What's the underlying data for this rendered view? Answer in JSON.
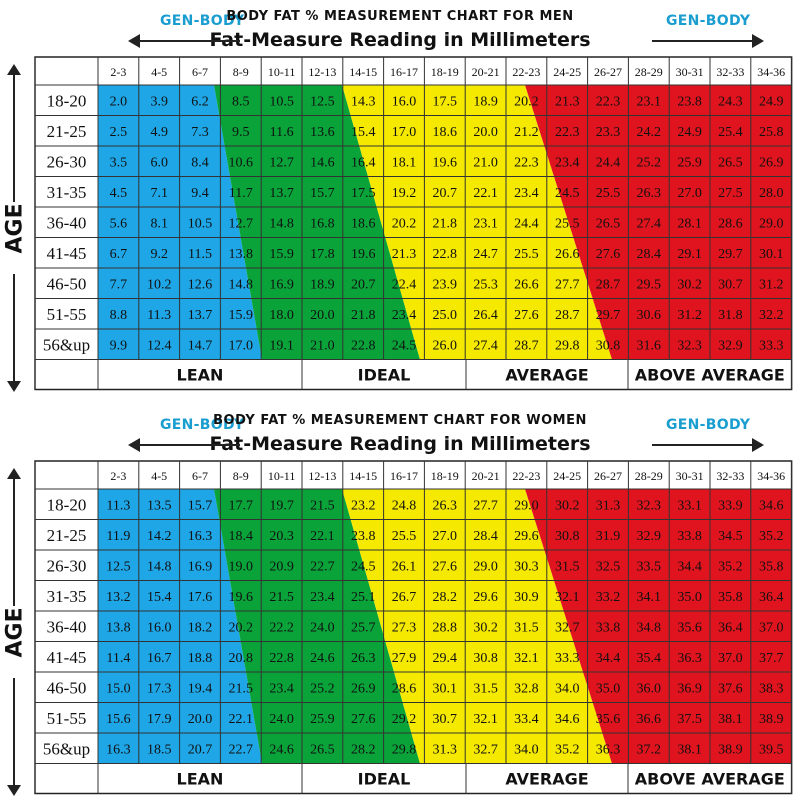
{
  "brand": "GEN-BODY",
  "colors": {
    "lean": "#1fa6e6",
    "ideal": "#0aa33a",
    "average": "#f5e900",
    "above_average": "#e0141e"
  },
  "chart_data": [
    {
      "type": "table",
      "title": "BODY FAT % MEASUREMENT CHART FOR MEN",
      "subtitle": "Fat-Measure Reading in Millimeters",
      "ylabel": "AGE",
      "columns": [
        "2-3",
        "4-5",
        "6-7",
        "8-9",
        "10-11",
        "12-13",
        "14-15",
        "16-17",
        "18-19",
        "20-21",
        "22-23",
        "24-25",
        "26-27",
        "28-29",
        "30-31",
        "32-33",
        "34-36"
      ],
      "rows": [
        "18-20",
        "21-25",
        "26-30",
        "31-35",
        "36-40",
        "41-45",
        "46-50",
        "51-55",
        "56&up"
      ],
      "values": [
        [
          2.0,
          3.9,
          6.2,
          8.5,
          10.5,
          12.5,
          14.3,
          16.0,
          17.5,
          18.9,
          20.2,
          21.3,
          22.3,
          23.1,
          23.8,
          24.3,
          24.9
        ],
        [
          2.5,
          4.9,
          7.3,
          9.5,
          11.6,
          13.6,
          15.4,
          17.0,
          18.6,
          20.0,
          21.2,
          22.3,
          23.3,
          24.2,
          24.9,
          25.4,
          25.8
        ],
        [
          3.5,
          6.0,
          8.4,
          10.6,
          12.7,
          14.6,
          16.4,
          18.1,
          19.6,
          21.0,
          22.3,
          23.4,
          24.4,
          25.2,
          25.9,
          26.5,
          26.9
        ],
        [
          4.5,
          7.1,
          9.4,
          11.7,
          13.7,
          15.7,
          17.5,
          19.2,
          20.7,
          22.1,
          23.4,
          24.5,
          25.5,
          26.3,
          27.0,
          27.5,
          28.0
        ],
        [
          5.6,
          8.1,
          10.5,
          12.7,
          14.8,
          16.8,
          18.6,
          20.2,
          21.8,
          23.1,
          24.4,
          25.5,
          26.5,
          27.4,
          28.1,
          28.6,
          29.0
        ],
        [
          6.7,
          9.2,
          11.5,
          13.8,
          15.9,
          17.8,
          19.6,
          21.3,
          22.8,
          24.7,
          25.5,
          26.6,
          27.6,
          28.4,
          29.1,
          29.7,
          30.1
        ],
        [
          7.7,
          10.2,
          12.6,
          14.8,
          16.9,
          18.9,
          20.7,
          22.4,
          23.9,
          25.3,
          26.6,
          27.7,
          28.7,
          29.5,
          30.2,
          30.7,
          31.2
        ],
        [
          8.8,
          11.3,
          13.7,
          15.9,
          18.0,
          20.0,
          21.8,
          23.4,
          25.0,
          26.4,
          27.6,
          28.7,
          29.7,
          30.6,
          31.2,
          31.8,
          32.2
        ],
        [
          9.9,
          12.4,
          14.7,
          17.0,
          19.1,
          21.0,
          22.8,
          24.5,
          26.0,
          27.4,
          28.7,
          29.8,
          30.8,
          31.6,
          32.3,
          32.9,
          33.3
        ]
      ],
      "categories": [
        "LEAN",
        "IDEAL",
        "AVERAGE",
        "ABOVE AVERAGE"
      ]
    },
    {
      "type": "table",
      "title": "BODY FAT % MEASUREMENT CHART FOR WOMEN",
      "subtitle": "Fat-Measure Reading in Millimeters",
      "ylabel": "AGE",
      "columns": [
        "2-3",
        "4-5",
        "6-7",
        "8-9",
        "10-11",
        "12-13",
        "14-15",
        "16-17",
        "18-19",
        "20-21",
        "22-23",
        "24-25",
        "26-27",
        "28-29",
        "30-31",
        "32-33",
        "34-36"
      ],
      "rows": [
        "18-20",
        "21-25",
        "26-30",
        "31-35",
        "36-40",
        "41-45",
        "46-50",
        "51-55",
        "56&up"
      ],
      "values": [
        [
          11.3,
          13.5,
          15.7,
          17.7,
          19.7,
          21.5,
          23.2,
          24.8,
          26.3,
          27.7,
          29.0,
          30.2,
          31.3,
          32.3,
          33.1,
          33.9,
          34.6
        ],
        [
          11.9,
          14.2,
          16.3,
          18.4,
          20.3,
          22.1,
          23.8,
          25.5,
          27.0,
          28.4,
          29.6,
          30.8,
          31.9,
          32.9,
          33.8,
          34.5,
          35.2
        ],
        [
          12.5,
          14.8,
          16.9,
          19.0,
          20.9,
          22.7,
          24.5,
          26.1,
          27.6,
          29.0,
          30.3,
          31.5,
          32.5,
          33.5,
          34.4,
          35.2,
          35.8
        ],
        [
          13.2,
          15.4,
          17.6,
          19.6,
          21.5,
          23.4,
          25.1,
          26.7,
          28.2,
          29.6,
          30.9,
          32.1,
          33.2,
          34.1,
          35.0,
          35.8,
          36.4
        ],
        [
          13.8,
          16.0,
          18.2,
          20.2,
          22.2,
          24.0,
          25.7,
          27.3,
          28.8,
          30.2,
          31.5,
          32.7,
          33.8,
          34.8,
          35.6,
          36.4,
          37.0
        ],
        [
          11.4,
          16.7,
          18.8,
          20.8,
          22.8,
          24.6,
          26.3,
          27.9,
          29.4,
          30.8,
          32.1,
          33.3,
          34.4,
          35.4,
          36.3,
          37.0,
          37.7
        ],
        [
          15.0,
          17.3,
          19.4,
          21.5,
          23.4,
          25.2,
          26.9,
          28.6,
          30.1,
          31.5,
          32.8,
          34.0,
          35.0,
          36.0,
          36.9,
          37.6,
          38.3
        ],
        [
          15.6,
          17.9,
          20.0,
          22.1,
          24.0,
          25.9,
          27.6,
          29.2,
          30.7,
          32.1,
          33.4,
          34.6,
          35.6,
          36.6,
          37.5,
          38.1,
          38.9
        ],
        [
          16.3,
          18.5,
          20.7,
          22.7,
          24.6,
          26.5,
          28.2,
          29.8,
          31.3,
          32.7,
          34.0,
          35.2,
          36.3,
          37.2,
          38.1,
          38.9,
          39.5
        ]
      ],
      "categories": [
        "LEAN",
        "IDEAL",
        "AVERAGE",
        "ABOVE AVERAGE"
      ]
    }
  ]
}
